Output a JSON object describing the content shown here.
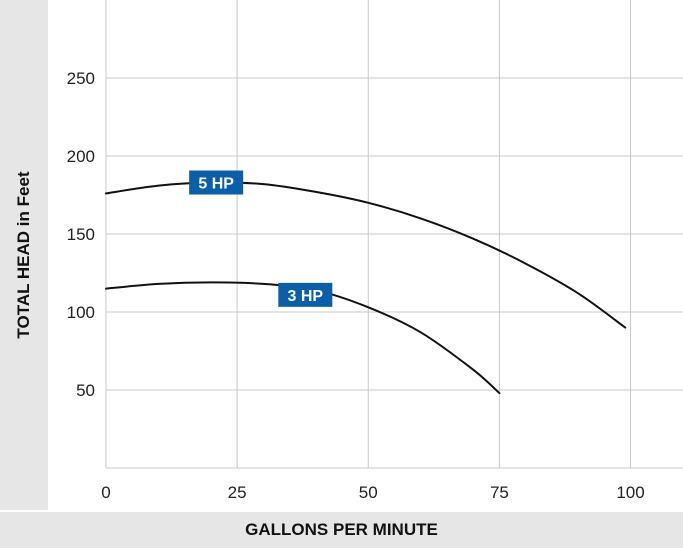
{
  "chart_data": {
    "type": "line",
    "xlabel": "GALLONS PER MINUTE",
    "ylabel": "TOTAL HEAD in Feet",
    "xlim": [
      0,
      110
    ],
    "ylim": [
      0,
      300
    ],
    "x_ticks": [
      0,
      25,
      50,
      75,
      100
    ],
    "y_ticks": [
      50,
      100,
      150,
      200,
      250
    ],
    "grid": true,
    "label_color": "#0b5ea8",
    "line_color": "#111111",
    "series": [
      {
        "name": "5 HP",
        "x": [
          0,
          10,
          20,
          30,
          40,
          50,
          60,
          70,
          80,
          90,
          99
        ],
        "y": [
          176,
          181,
          183,
          182,
          177,
          170,
          160,
          147,
          131,
          112,
          90
        ],
        "label_at": [
          21,
          183
        ]
      },
      {
        "name": "3 HP",
        "x": [
          0,
          10,
          20,
          30,
          40,
          50,
          60,
          70,
          75
        ],
        "y": [
          115,
          118,
          119,
          118,
          114,
          103,
          87,
          63,
          48
        ],
        "label_at": [
          38,
          111
        ]
      }
    ]
  }
}
